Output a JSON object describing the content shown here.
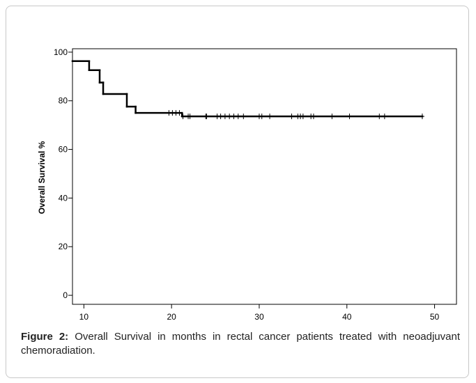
{
  "chart_data": {
    "type": "step",
    "ylabel": "Overall Survival %",
    "xlim": [
      8.7,
      52.5
    ],
    "ylim": [
      -3.7,
      101.4
    ],
    "xticks": [
      10,
      20,
      30,
      40,
      50
    ],
    "yticks": [
      0,
      20,
      40,
      60,
      80,
      100
    ],
    "color": "#000000",
    "initial_value": 96.3,
    "x": [
      10.6,
      11.8,
      12.2,
      14.9,
      15.9,
      21.2
    ],
    "values": [
      92.6,
      87.5,
      82.8,
      77.6,
      75.0,
      73.6
    ],
    "censored": {
      "x": [
        19.7,
        20.1,
        20.5,
        20.9,
        21.3,
        21.9,
        22.1,
        23.9,
        24.0,
        25.2,
        25.6,
        26.1,
        26.6,
        27.1,
        27.6,
        28.2,
        30.0,
        30.3,
        31.2,
        33.7,
        34.4,
        34.7,
        35.0,
        35.9,
        36.2,
        38.3,
        40.3,
        43.7,
        44.3,
        48.6
      ],
      "values": [
        75.0,
        75.0,
        75.0,
        75.0,
        73.6,
        73.6,
        73.6,
        73.6,
        73.6,
        73.6,
        73.6,
        73.6,
        73.6,
        73.6,
        73.6,
        73.6,
        73.6,
        73.6,
        73.6,
        73.6,
        73.6,
        73.6,
        73.6,
        73.6,
        73.6,
        73.6,
        73.6,
        73.6,
        73.6,
        73.6
      ]
    }
  },
  "caption": {
    "label": "Figure 2:",
    "text": "Overall Survival in months in rectal cancer patients treated with neoadjuvant chemoradiation."
  }
}
